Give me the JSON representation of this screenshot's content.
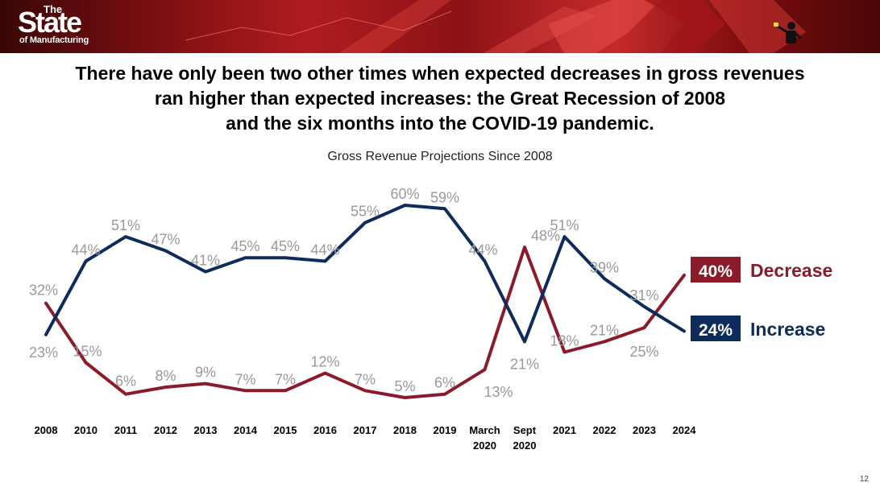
{
  "logo": {
    "the": "The",
    "state": "State",
    "of_manufacturing": "of Manufacturing"
  },
  "headline": [
    "There have only been two other times when expected decreases in gross revenues",
    "ran higher than expected increases: the Great Recession of 2008",
    "and the six months into the COVID-19 pandemic."
  ],
  "page_number": "12",
  "colors": {
    "increase": "#0d2c5c",
    "decrease": "#8b1a2b",
    "data_label": "#999999"
  },
  "chart_data": {
    "type": "line",
    "title": "Gross Revenue Projections Since 2008",
    "categories": [
      [
        "2008"
      ],
      [
        "2010"
      ],
      [
        "2011"
      ],
      [
        "2012"
      ],
      [
        "2013"
      ],
      [
        "2014"
      ],
      [
        "2015"
      ],
      [
        "2016"
      ],
      [
        "2017"
      ],
      [
        "2018"
      ],
      [
        "2019"
      ],
      [
        "March",
        "2020"
      ],
      [
        "Sept",
        "2020"
      ],
      [
        "2021"
      ],
      [
        "2022"
      ],
      [
        "2023"
      ],
      [
        "2024"
      ]
    ],
    "series": [
      {
        "name": "Increase",
        "color": "#0d2c5c",
        "values": [
          23,
          44,
          51,
          47,
          41,
          45,
          45,
          44,
          55,
          60,
          59,
          44,
          21,
          51,
          39,
          31,
          24
        ],
        "labels": [
          "23%",
          "44%",
          "51%",
          "47%",
          "41%",
          "45%",
          "45%",
          "44%",
          "55%",
          "60%",
          "59%",
          "44%",
          "21%",
          "51%",
          "39%",
          "31%",
          "24%"
        ],
        "end_label": "24%"
      },
      {
        "name": "Decrease",
        "color": "#8b1a2b",
        "values": [
          32,
          15,
          6,
          8,
          9,
          7,
          7,
          12,
          7,
          5,
          6,
          13,
          48,
          18,
          21,
          25,
          40
        ],
        "labels": [
          "32%",
          "15%",
          "6%",
          "8%",
          "9%",
          "7%",
          "7%",
          "12%",
          "7%",
          "5%",
          "6%",
          "13%",
          "48%",
          "18%",
          "21%",
          "25%",
          "40%"
        ],
        "end_label": "40%"
      }
    ],
    "ylim": [
      0,
      65
    ],
    "grid": false,
    "legend": "right (inline labels at line ends)"
  }
}
